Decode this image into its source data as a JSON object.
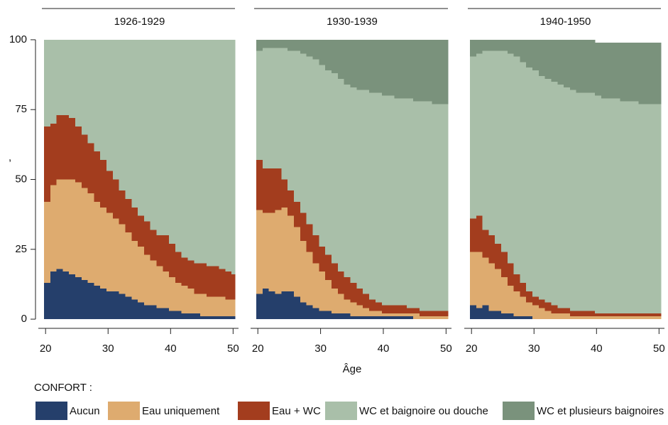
{
  "chart_data": [
    {
      "type": "area",
      "title": "1926-1929",
      "ylabel": ",",
      "legend_title": "CONFORT :",
      "x": [
        20,
        21,
        22,
        23,
        24,
        25,
        26,
        27,
        28,
        29,
        30,
        31,
        32,
        33,
        34,
        35,
        36,
        37,
        38,
        39,
        40,
        41,
        42,
        43,
        44,
        45,
        46,
        47,
        48,
        49,
        50
      ],
      "xlim": [
        19.75,
        50.3
      ],
      "xticks": [
        20,
        30,
        40,
        50
      ],
      "ylim": [
        -1,
        101
      ],
      "yticks": [
        0,
        25,
        50,
        75,
        100
      ],
      "series": [
        {
          "name": "Aucun",
          "color": "#253f6b",
          "values": [
            13,
            17,
            18,
            17,
            16,
            15,
            14,
            13,
            12,
            11,
            10,
            10,
            9,
            8,
            7,
            6,
            5,
            5,
            4,
            4,
            3,
            3,
            2,
            2,
            2,
            1,
            1,
            1,
            1,
            1,
            1
          ]
        },
        {
          "name": "Eau uniquement",
          "color": "#deab6f",
          "values": [
            29,
            31,
            32,
            33,
            34,
            34,
            33,
            32,
            30,
            29,
            28,
            26,
            25,
            23,
            21,
            20,
            18,
            16,
            15,
            13,
            12,
            10,
            10,
            9,
            7,
            8,
            7,
            7,
            7,
            6,
            6
          ]
        },
        {
          "name": "Eau + WC",
          "color": "#a33d1e",
          "values": [
            27,
            22,
            23,
            23,
            22,
            20,
            19,
            18,
            18,
            17,
            15,
            14,
            12,
            12,
            12,
            11,
            12,
            11,
            11,
            13,
            12,
            11,
            10,
            10,
            11,
            11,
            11,
            11,
            10,
            10,
            9
          ]
        },
        {
          "name": "WC et baignoire ou douche",
          "color": "#a9bfa9",
          "values": [
            31,
            30,
            27,
            27,
            28,
            31,
            34,
            37,
            40,
            43,
            47,
            50,
            54,
            57,
            60,
            63,
            65,
            68,
            70,
            70,
            73,
            76,
            78,
            79,
            80,
            80,
            81,
            81,
            82,
            83,
            84
          ]
        },
        {
          "name": "WC et plusieurs baignoires",
          "color": "#7a927c",
          "values": [
            0,
            0,
            0,
            0,
            0,
            0,
            0,
            0,
            0,
            0,
            0,
            0,
            0,
            0,
            0,
            0,
            0,
            0,
            0,
            0,
            0,
            0,
            0,
            0,
            0,
            0,
            0,
            0,
            0,
            0,
            0
          ]
        }
      ]
    },
    {
      "type": "area",
      "title": "1930-1939",
      "xlabel": "Âge",
      "x": [
        20,
        21,
        22,
        23,
        24,
        25,
        26,
        27,
        28,
        29,
        30,
        31,
        32,
        33,
        34,
        35,
        36,
        37,
        38,
        39,
        40,
        41,
        42,
        43,
        44,
        45,
        46,
        47,
        48,
        49,
        50
      ],
      "xlim": [
        19.75,
        50.3
      ],
      "xticks": [
        20,
        30,
        40,
        50
      ],
      "ylim": [
        -1,
        101
      ],
      "series": [
        {
          "name": "Aucun",
          "color": "#253f6b",
          "values": [
            9,
            11,
            10,
            9,
            10,
            10,
            8,
            6,
            5,
            4,
            3,
            3,
            2,
            2,
            2,
            1,
            1,
            1,
            1,
            1,
            1,
            1,
            1,
            1,
            1,
            0,
            0,
            0,
            0,
            0,
            0
          ]
        },
        {
          "name": "Eau uniquement",
          "color": "#deab6f",
          "values": [
            30,
            27,
            28,
            30,
            30,
            27,
            25,
            22,
            19,
            16,
            14,
            11,
            9,
            7,
            5,
            5,
            4,
            3,
            2,
            2,
            1,
            1,
            1,
            1,
            1,
            2,
            1,
            1,
            1,
            1,
            1
          ]
        },
        {
          "name": "Eau + WC",
          "color": "#a33d1e",
          "values": [
            18,
            16,
            16,
            15,
            10,
            9,
            9,
            10,
            10,
            10,
            9,
            9,
            9,
            8,
            8,
            7,
            6,
            5,
            4,
            3,
            3,
            3,
            3,
            3,
            2,
            2,
            2,
            2,
            2,
            2,
            2
          ]
        },
        {
          "name": "WC et baignoire ou douche",
          "color": "#a9bfa9",
          "values": [
            39,
            43,
            43,
            43,
            47,
            50,
            54,
            57,
            60,
            63,
            65,
            66,
            68,
            69,
            69,
            70,
            71,
            73,
            74,
            75,
            75,
            75,
            74,
            74,
            75,
            74,
            75,
            75,
            74,
            74,
            74
          ]
        },
        {
          "name": "WC et plusieurs baignoires",
          "color": "#7a927c",
          "values": [
            4,
            3,
            3,
            3,
            3,
            4,
            4,
            5,
            6,
            7,
            9,
            11,
            12,
            14,
            16,
            17,
            18,
            18,
            19,
            19,
            20,
            20,
            21,
            21,
            21,
            22,
            22,
            22,
            23,
            23,
            23
          ]
        }
      ]
    },
    {
      "type": "area",
      "title": "1940-1950",
      "x": [
        20,
        21,
        22,
        23,
        24,
        25,
        26,
        27,
        28,
        29,
        30,
        31,
        32,
        33,
        34,
        35,
        36,
        37,
        38,
        39,
        40,
        41,
        42,
        43,
        44,
        45,
        46,
        47,
        48,
        49,
        50
      ],
      "xlim": [
        19.75,
        50.3
      ],
      "xticks": [
        20,
        30,
        40,
        50
      ],
      "ylim": [
        -1,
        101
      ],
      "series": [
        {
          "name": "Aucun",
          "color": "#253f6b",
          "values": [
            5,
            4,
            5,
            3,
            3,
            2,
            2,
            1,
            1,
            1,
            0,
            0,
            0,
            0,
            0,
            0,
            0,
            0,
            0,
            0,
            0,
            0,
            0,
            0,
            0,
            0,
            0,
            0,
            0,
            0,
            0
          ]
        },
        {
          "name": "Eau uniquement",
          "color": "#deab6f",
          "values": [
            19,
            20,
            17,
            17,
            15,
            13,
            10,
            9,
            7,
            5,
            5,
            4,
            3,
            2,
            2,
            2,
            1,
            1,
            1,
            1,
            1,
            1,
            1,
            1,
            1,
            1,
            1,
            1,
            1,
            1,
            1
          ]
        },
        {
          "name": "Eau + WC",
          "color": "#a33d1e",
          "values": [
            12,
            13,
            10,
            10,
            9,
            9,
            8,
            6,
            5,
            4,
            3,
            3,
            3,
            3,
            2,
            2,
            2,
            2,
            2,
            2,
            1,
            1,
            1,
            1,
            1,
            1,
            1,
            1,
            1,
            1,
            1
          ]
        },
        {
          "name": "WC et baignoire ou douche",
          "color": "#a9bfa9",
          "values": [
            58,
            58,
            64,
            66,
            69,
            72,
            75,
            78,
            79,
            80,
            81,
            80,
            80,
            80,
            80,
            79,
            79,
            78,
            78,
            78,
            78,
            77,
            77,
            77,
            76,
            76,
            76,
            75,
            75,
            75,
            75
          ]
        },
        {
          "name": "WC et plusieurs baignoires",
          "color": "#7a927c",
          "values": [
            6,
            5,
            4,
            4,
            4,
            4,
            5,
            6,
            8,
            10,
            11,
            13,
            14,
            15,
            16,
            17,
            18,
            19,
            19,
            19,
            19,
            20,
            20,
            20,
            21,
            21,
            21,
            22,
            22,
            22,
            22
          ]
        }
      ]
    }
  ]
}
